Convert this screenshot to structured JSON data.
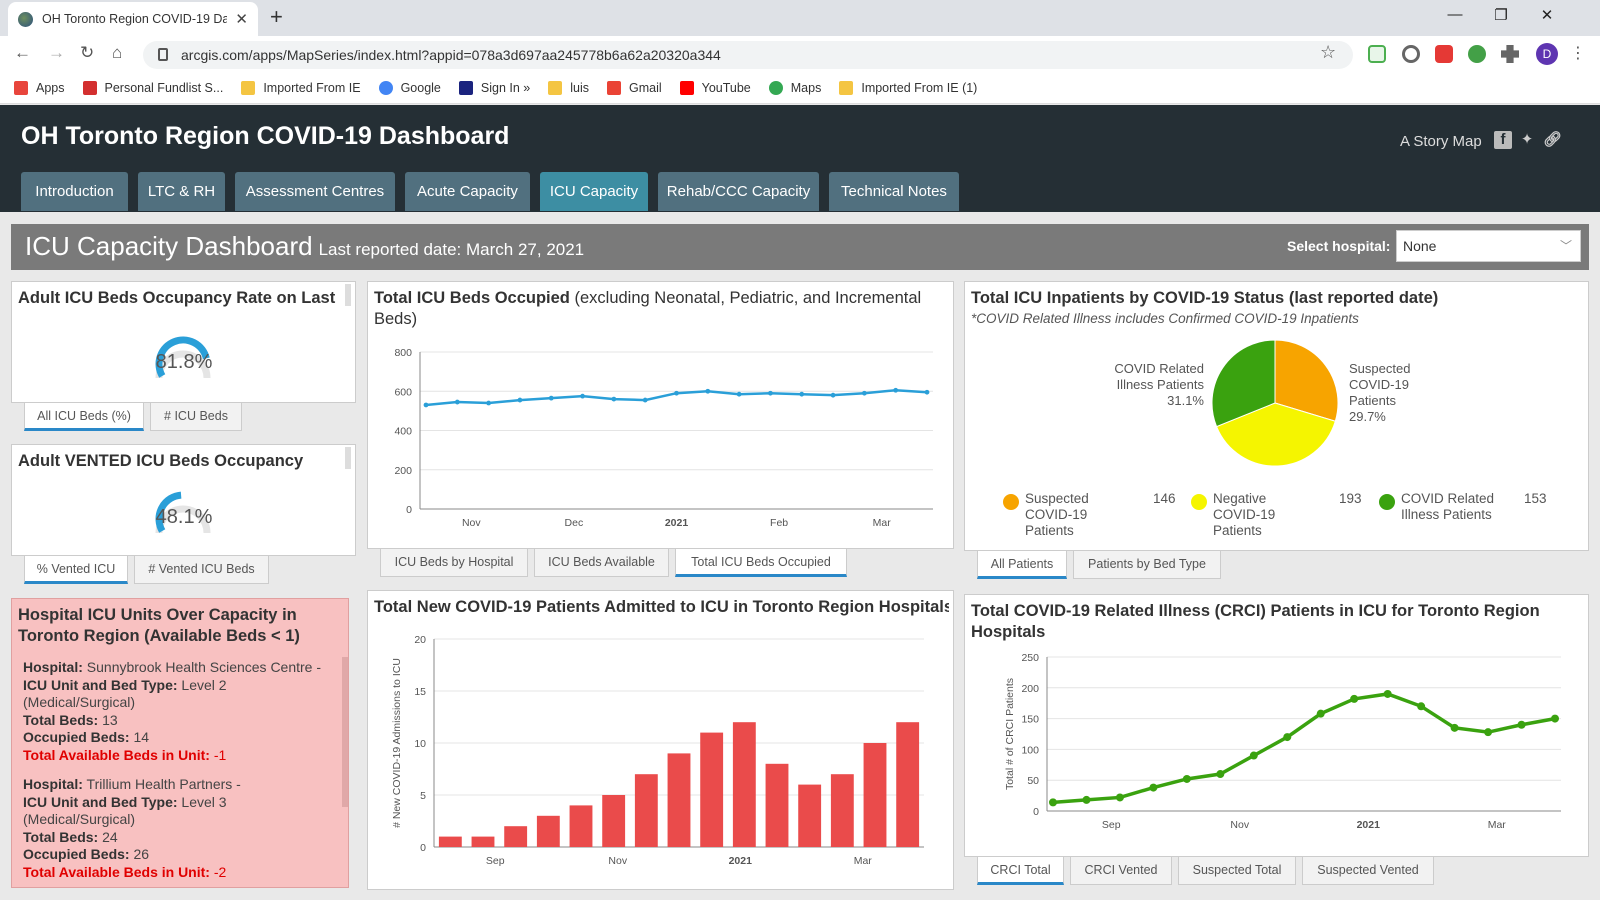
{
  "browser": {
    "tab_title": "OH Toronto Region COVID-19 Da",
    "url": "arcgis.com/apps/MapSeries/index.html?appid=078a3d697aa245778b6a62a20320a344",
    "profile_initial": "D",
    "bookmarks": [
      {
        "label": "Apps",
        "icon": "apps-grid-icon",
        "color": "#e8453c"
      },
      {
        "label": "Personal Fundlist S...",
        "icon": "maple-leaf-icon",
        "color": "#d32f2f"
      },
      {
        "label": "Imported From IE",
        "icon": "folder-icon",
        "color": "#f4c542"
      },
      {
        "label": "Google",
        "icon": "google-icon",
        "color": "#4285f4"
      },
      {
        "label": "Sign In »",
        "icon": "star-icon",
        "color": "#1a237e"
      },
      {
        "label": "luis",
        "icon": "folder-icon",
        "color": "#f4c542"
      },
      {
        "label": "Gmail",
        "icon": "gmail-icon",
        "color": "#ea4335"
      },
      {
        "label": "YouTube",
        "icon": "youtube-icon",
        "color": "#ff0000"
      },
      {
        "label": "Maps",
        "icon": "maps-pin-icon",
        "color": "#34a853"
      },
      {
        "label": "Imported From IE (1)",
        "icon": "folder-icon",
        "color": "#f4c542"
      }
    ]
  },
  "app": {
    "title": "OH Toronto Region COVID-19 Dashboard",
    "story_map": "A Story Map",
    "tabs": [
      "Introduction",
      "LTC & RH",
      "Assessment Centres",
      "Acute Capacity",
      "ICU Capacity",
      "Rehab/CCC Capacity",
      "Technical Notes"
    ],
    "active_tab": "ICU Capacity"
  },
  "banner": {
    "title": "ICU Capacity Dashboard",
    "subtitle": "Last reported date: March 27, 2021",
    "select_label": "Select hospital:",
    "select_value": "None"
  },
  "occupancy": {
    "title": "Adult ICU Beds Occupancy Rate on Last Reported Date (excl. Neonatal, Pediatric and",
    "value": "81.8%",
    "fraction": 0.818,
    "tabs": [
      "All ICU Beds (%)",
      "# ICU Beds"
    ]
  },
  "vented": {
    "title": "Adult VENTED ICU Beds Occupancy Rate on Last Reported Date (excl.",
    "value": "48.1%",
    "fraction": 0.481,
    "tabs": [
      "% Vented ICU",
      "# Vented ICU Beds"
    ]
  },
  "overcap": {
    "title": "Hospital ICU Units Over Capacity in Toronto Region (Available Beds < 1)",
    "labels": {
      "hospital": "Hospital:",
      "unit": "ICU Unit and Bed Type:",
      "total": "Total Beds:",
      "occupied": "Occupied Beds:",
      "available": "Total Available Beds in Unit:"
    },
    "records": [
      {
        "hospital": "Sunnybrook Health Sciences Centre -",
        "unit": "Level 2 (Medical/Surgical)",
        "total": "13",
        "occupied": "14",
        "available": "-1"
      },
      {
        "hospital": "Trillium Health Partners -",
        "unit": "Level 3 (Medical/Surgical)",
        "total": "24",
        "occupied": "26",
        "available": "-2"
      }
    ]
  },
  "beds_occupied": {
    "title": "Total ICU Beds Occupied",
    "title_note": "(excluding Neonatal, Pediatric, and Incremental Beds)",
    "tabs": [
      "ICU Beds by Hospital",
      "ICU Beds Available",
      "Total ICU Beds Occupied"
    ],
    "active_tab": "Total ICU Beds Occupied"
  },
  "status": {
    "title": "Total ICU Inpatients by COVID-19 Status (last reported date)",
    "note": "*COVID Related Illness includes Confirmed COVID-19 Inpatients",
    "callouts": {
      "left": "COVID Related Illness Patients 31.1%",
      "right": "Suspected COVID-19 Patients 29.7%"
    },
    "legend": [
      {
        "name": "Suspected COVID-19 Patients",
        "value": "146",
        "color": "#f7a400"
      },
      {
        "name": "Negative COVID-19 Patients",
        "value": "193",
        "color": "#f5f500"
      },
      {
        "name": "COVID Related Illness Patients",
        "value": "153",
        "color": "#3aa20f"
      }
    ],
    "tabs": [
      "All Patients",
      "Patients by Bed Type"
    ]
  },
  "admissions": {
    "title": "Total New COVID-19 Patients Admitted to ICU in Toronto Region Hospitals"
  },
  "crci": {
    "title": "Total COVID-19 Related Illness (CRCI) Patients in ICU for Toronto Region Hospitals",
    "tabs": [
      "CRCI Total",
      "CRCI Vented",
      "Suspected Total",
      "Suspected Vented"
    ]
  },
  "chart_data": [
    {
      "type": "line",
      "title": "Total ICU Beds Occupied",
      "x_ticks": [
        "Nov",
        "Dec",
        "2021",
        "Feb",
        "Mar"
      ],
      "ylim": [
        0,
        800
      ],
      "y_ticks": [
        0,
        200,
        400,
        600,
        800
      ],
      "color": "#2a9fd8",
      "grid": true,
      "x": [
        "Oct 15",
        "Oct 25",
        "Nov 5",
        "Nov 15",
        "Nov 25",
        "Dec 5",
        "Dec 15",
        "Dec 25",
        "Jan 5",
        "Jan 15",
        "Jan 25",
        "Feb 5",
        "Feb 15",
        "Feb 25",
        "Mar 5",
        "Mar 15",
        "Mar 27"
      ],
      "values": [
        530,
        545,
        540,
        555,
        565,
        575,
        560,
        555,
        590,
        600,
        585,
        590,
        585,
        580,
        590,
        605,
        595
      ]
    },
    {
      "type": "pie",
      "title": "Total ICU Inpatients by COVID-19 Status (last reported date)",
      "categories": [
        "Suspected COVID-19 Patients",
        "Negative COVID-19 Patients",
        "COVID Related Illness Patients"
      ],
      "values": [
        146,
        193,
        153
      ],
      "colors": [
        "#f7a400",
        "#f5f500",
        "#3aa20f"
      ]
    },
    {
      "type": "bar",
      "title": "Total New COVID-19 Patients Admitted to ICU in Toronto Region Hospitals",
      "ylabel": "# New COVID-19 Admissions to ICU",
      "x_ticks": [
        "Sep",
        "Nov",
        "2021",
        "Mar"
      ],
      "ylim": [
        0,
        20
      ],
      "y_ticks": [
        0,
        5,
        10,
        15,
        20
      ],
      "color": "#ea4b4b",
      "grid": true,
      "x": [
        "Sep 1",
        "Sep 16",
        "Oct 1",
        "Oct 16",
        "Nov 1",
        "Nov 16",
        "Dec 1",
        "Dec 16",
        "Jan 1",
        "Jan 16",
        "Feb 1",
        "Feb 16",
        "Mar 1",
        "Mar 16",
        "Mar 27"
      ],
      "values": [
        1,
        1,
        2,
        3,
        4,
        5,
        7,
        9,
        11,
        12,
        8,
        6,
        7,
        10,
        12
      ]
    },
    {
      "type": "line",
      "title": "Total COVID-19 Related Illness (CRCI) Patients in ICU for Toronto Region Hospitals",
      "ylabel": "Total # of CRCI Patients",
      "x_ticks": [
        "Sep",
        "Nov",
        "2021",
        "Mar"
      ],
      "ylim": [
        0,
        250
      ],
      "y_ticks": [
        0,
        50,
        100,
        150,
        200,
        250
      ],
      "color": "#3aa20f",
      "grid": true,
      "x": [
        "Sep 1",
        "Sep 15",
        "Oct 1",
        "Oct 15",
        "Nov 1",
        "Nov 15",
        "Dec 1",
        "Dec 15",
        "Jan 1",
        "Jan 10",
        "Jan 20",
        "Feb 1",
        "Feb 15",
        "Mar 1",
        "Mar 15",
        "Mar 27"
      ],
      "values": [
        14,
        18,
        22,
        38,
        52,
        60,
        90,
        120,
        158,
        182,
        190,
        170,
        135,
        128,
        140,
        150
      ]
    }
  ]
}
